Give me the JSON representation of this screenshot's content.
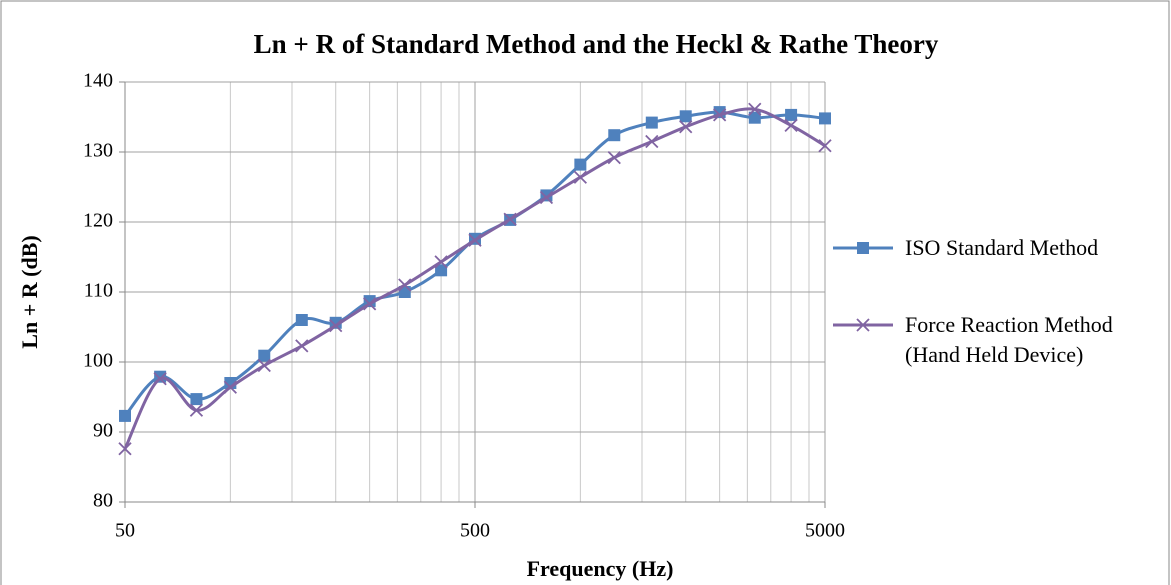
{
  "chart_data": {
    "type": "line",
    "title": "Ln + R of Standard Method and the Heckl & Rathe Theory",
    "x_label": "Frequency (Hz)",
    "y_label": "Ln + R (dB)",
    "x": [
      50,
      63,
      80,
      100,
      125,
      160,
      200,
      250,
      315,
      400,
      500,
      630,
      800,
      1000,
      1250,
      1600,
      2000,
      2500,
      3150,
      4000,
      5000
    ],
    "series": [
      {
        "name": "ISO Standard Method",
        "color": "#4f81bd",
        "marker": "square",
        "values": [
          92.3,
          97.9,
          94.7,
          97.0,
          100.9,
          106.0,
          105.6,
          108.7,
          110.0,
          113.1,
          117.6,
          120.3,
          123.8,
          128.2,
          132.4,
          134.2,
          135.1,
          135.7,
          134.9,
          135.3,
          134.8
        ]
      },
      {
        "name": "Force Reaction Method (Hand Held Device)",
        "color": "#8064a2",
        "marker": "x",
        "values": [
          87.6,
          97.6,
          93.1,
          96.4,
          99.5,
          102.3,
          105.2,
          108.3,
          111.0,
          114.3,
          117.4,
          120.4,
          123.5,
          126.4,
          129.2,
          131.5,
          133.6,
          135.3,
          136.1,
          133.8,
          130.9
        ]
      }
    ],
    "xlim": [
      50,
      5000
    ],
    "xticks": [
      50,
      500,
      5000
    ],
    "xlog": true,
    "xminorticks": [
      100,
      150,
      200,
      250,
      300,
      350,
      400,
      450,
      1000,
      1500,
      2000,
      2500,
      3000,
      3500,
      4000,
      4500
    ],
    "ylim": [
      80,
      140
    ],
    "yticks": [
      80,
      90,
      100,
      110,
      120,
      130,
      140
    ],
    "grid": true,
    "legend": "right"
  }
}
